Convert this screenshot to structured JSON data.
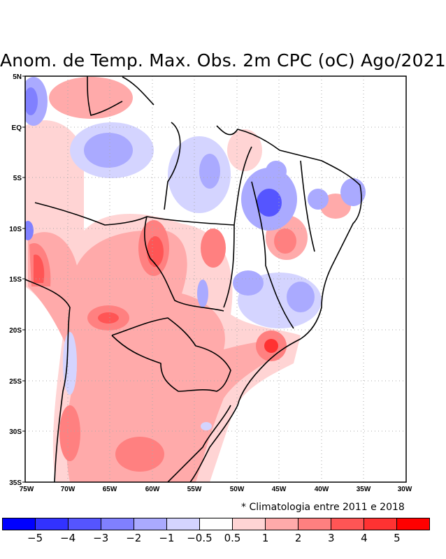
{
  "title": "Anom. de Temp. Max. Obs. 2m CPC (oC) Ago/2021",
  "note": "* Climatologia entre 2011 e 2018",
  "map": {
    "region": "Brazil / South America",
    "variable": "Maximum temperature anomaly at 2m (oC)",
    "lon_labels": [
      "75W",
      "70W",
      "65W",
      "60W",
      "55W",
      "50W",
      "45W",
      "40W",
      "35W",
      "30W"
    ],
    "lat_labels": [
      "5N",
      "EQ",
      "5S",
      "10S",
      "15S",
      "20S",
      "25S",
      "30S",
      "35S"
    ],
    "lon_range": [
      -75,
      -30
    ],
    "lat_range": [
      -35,
      5
    ],
    "grid": "dotted"
  },
  "colorbar": {
    "colors": [
      "#0000ff",
      "#3232ff",
      "#5555ff",
      "#8080ff",
      "#aaaaff",
      "#d4d4ff",
      "#ffffff",
      "#ffd4d4",
      "#ffaaaa",
      "#ff8080",
      "#ff5555",
      "#ff3232",
      "#ff0000"
    ],
    "labels": [
      "-5",
      "-4",
      "-3",
      "-2",
      "-1",
      "-0.5",
      "0.5",
      "1",
      "2",
      "3",
      "4",
      "5"
    ]
  }
}
